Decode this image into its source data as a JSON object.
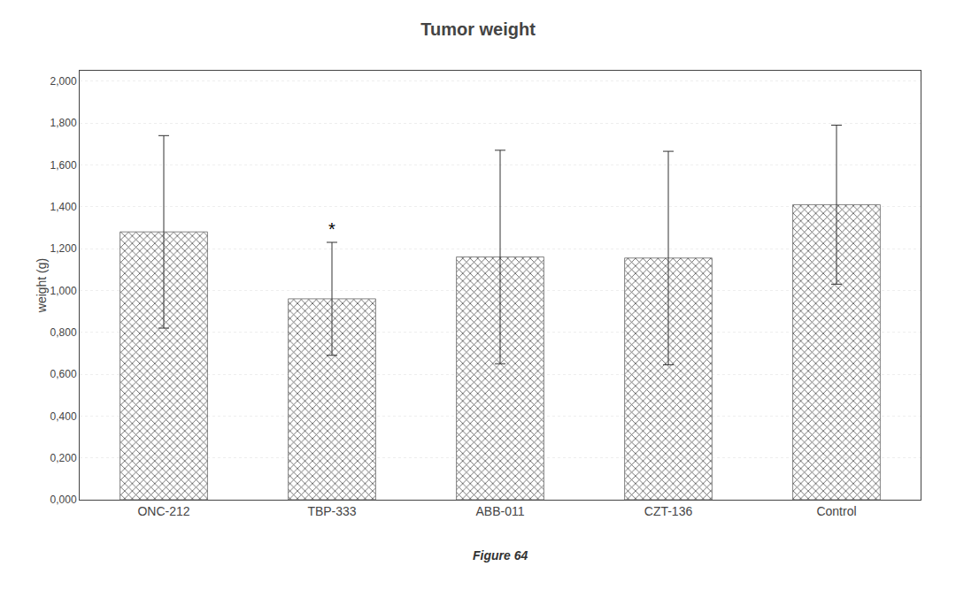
{
  "chart_data": {
    "type": "bar",
    "title": "Tumor weight",
    "ylabel": "weight (g)",
    "categories": [
      "ONC-212",
      "TBP-333",
      "ABB-011",
      "CZT-136",
      "Control"
    ],
    "values": [
      1.28,
      0.96,
      1.16,
      1.155,
      1.41
    ],
    "errors": [
      0.46,
      0.27,
      0.51,
      0.51,
      0.38
    ],
    "color": "#888888",
    "ylim": [
      0.0,
      2.05
    ],
    "yticks": [
      {
        "value": 0.0,
        "label": "0,000"
      },
      {
        "value": 0.2,
        "label": "0,200"
      },
      {
        "value": 0.4,
        "label": "0,400"
      },
      {
        "value": 0.6,
        "label": "0,600"
      },
      {
        "value": 0.8,
        "label": "0,800"
      },
      {
        "value": 1.0,
        "label": "1,000"
      },
      {
        "value": 1.2,
        "label": "1,200"
      },
      {
        "value": 1.4,
        "label": "1,400"
      },
      {
        "value": 1.6,
        "label": "1,600"
      },
      {
        "value": 1.8,
        "label": "1,800"
      },
      {
        "value": 2.0,
        "label": "2,000"
      }
    ],
    "grid": true,
    "annotations": [
      {
        "text": "*",
        "category": "TBP-333"
      },
      {
        "text": "Figure 64"
      }
    ]
  }
}
